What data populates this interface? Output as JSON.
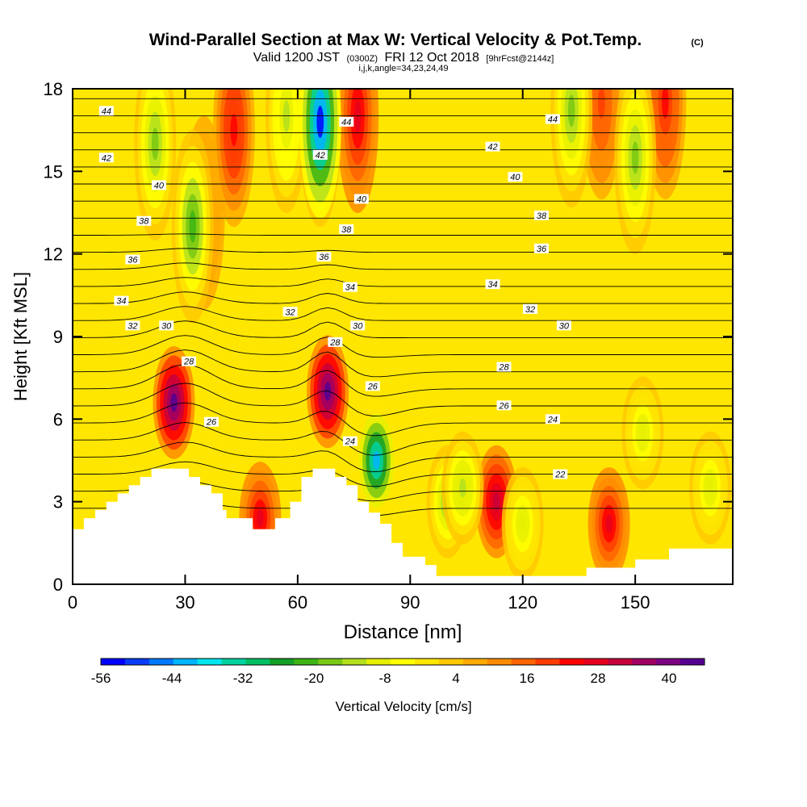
{
  "header": {
    "title": "Wind-Parallel Section at Max W: Vertical Velocity & Pot.Temp.",
    "copyright": "(C)",
    "valid_prefix": "Valid 1200 JST",
    "valid_utc": "(0300Z)",
    "valid_date": "FRI 12 Oct 2018",
    "forecast": "[9hrFcst@2144z]",
    "indices": "i,j,k,angle=34,23,24,49"
  },
  "chart_data": {
    "type": "heatmap",
    "xlabel": "Distance [nm]",
    "ylabel": "Height [Kft MSL]",
    "xlim": [
      0,
      176
    ],
    "ylim": [
      0,
      18
    ],
    "x_ticks": [
      0,
      30,
      60,
      90,
      120,
      150
    ],
    "y_ticks": [
      0,
      3,
      6,
      9,
      12,
      15,
      18
    ],
    "colorbar": {
      "label": "Vertical Velocity [cm/s]",
      "range": [
        -56,
        46
      ],
      "tick_labels": [
        -56,
        -44,
        -32,
        -20,
        -8,
        4,
        16,
        28,
        40
      ],
      "colors": [
        "#0000ff",
        "#0a3cf5",
        "#0078ff",
        "#00b4ff",
        "#00e6f0",
        "#00d2a0",
        "#00be64",
        "#14a028",
        "#3cb414",
        "#78c814",
        "#b4e01e",
        "#e6f000",
        "#ffff00",
        "#ffe600",
        "#ffc800",
        "#ffaa00",
        "#ff8c00",
        "#ff6400",
        "#ff3c00",
        "#ff0000",
        "#e6001e",
        "#c8003c",
        "#a00064",
        "#7a0082",
        "#550090"
      ]
    },
    "vertical_velocity_features": [
      {
        "x": 27,
        "height": 6.6,
        "w": 42,
        "kind": "updraft"
      },
      {
        "x": 35,
        "height": 13.5,
        "w": 8,
        "kind": "updraft"
      },
      {
        "x": 43,
        "height": 16.5,
        "w": 24,
        "kind": "updraft"
      },
      {
        "x": 50,
        "height": 2.4,
        "w": 28,
        "kind": "updraft"
      },
      {
        "x": 68,
        "height": 7.0,
        "w": 44,
        "kind": "updraft"
      },
      {
        "x": 76,
        "height": 17.0,
        "w": 26,
        "kind": "updraft"
      },
      {
        "x": 81,
        "height": 4.5,
        "w": -40,
        "kind": "downdraft"
      },
      {
        "x": 113,
        "height": 3.0,
        "w": 30,
        "kind": "updraft"
      },
      {
        "x": 143,
        "height": 2.2,
        "w": 28,
        "kind": "updraft"
      },
      {
        "x": 141,
        "height": 17.5,
        "w": 18,
        "kind": "updraft"
      },
      {
        "x": 158,
        "height": 17.5,
        "w": 22,
        "kind": "updraft"
      },
      {
        "x": 32,
        "height": 13.0,
        "w": -20,
        "kind": "downdraft"
      },
      {
        "x": 22,
        "height": 16.0,
        "w": -18,
        "kind": "downdraft"
      },
      {
        "x": 66,
        "height": 16.5,
        "w": -20,
        "kind": "downdraft"
      },
      {
        "x": 57,
        "height": 17.0,
        "w": -12,
        "kind": "downdraft"
      },
      {
        "x": 66,
        "height": 16.8,
        "w": -52,
        "kind": "downdraft"
      },
      {
        "x": 100,
        "height": 3.0,
        "w": -18,
        "kind": "downdraft"
      },
      {
        "x": 104,
        "height": 3.5,
        "w": -14,
        "kind": "downdraft"
      },
      {
        "x": 120,
        "height": 2.2,
        "w": -10,
        "kind": "downdraft"
      },
      {
        "x": 133,
        "height": 17.2,
        "w": -18,
        "kind": "downdraft"
      },
      {
        "x": 150,
        "height": 15.5,
        "w": -16,
        "kind": "downdraft"
      },
      {
        "x": 170,
        "height": 3.5,
        "w": -10,
        "kind": "downdraft"
      },
      {
        "x": 152,
        "height": 5.5,
        "w": -10,
        "kind": "downdraft"
      }
    ],
    "pot_temp_labels": [
      {
        "text": "44",
        "x": 9,
        "y": 17.2
      },
      {
        "text": "42",
        "x": 9,
        "y": 15.5
      },
      {
        "text": "40",
        "x": 23,
        "y": 14.5
      },
      {
        "text": "38",
        "x": 19,
        "y": 13.2
      },
      {
        "text": "36",
        "x": 16,
        "y": 11.8
      },
      {
        "text": "34",
        "x": 13,
        "y": 10.3
      },
      {
        "text": "32",
        "x": 16,
        "y": 9.4
      },
      {
        "text": "30",
        "x": 25,
        "y": 9.4
      },
      {
        "text": "28",
        "x": 31,
        "y": 8.1
      },
      {
        "text": "26",
        "x": 37,
        "y": 5.9
      },
      {
        "text": "44",
        "x": 73,
        "y": 16.8
      },
      {
        "text": "42",
        "x": 66,
        "y": 15.6
      },
      {
        "text": "40",
        "x": 77,
        "y": 14.0
      },
      {
        "text": "38",
        "x": 73,
        "y": 12.9
      },
      {
        "text": "36",
        "x": 67,
        "y": 11.9
      },
      {
        "text": "34",
        "x": 74,
        "y": 10.8
      },
      {
        "text": "32",
        "x": 58,
        "y": 9.9
      },
      {
        "text": "30",
        "x": 76,
        "y": 9.4
      },
      {
        "text": "28",
        "x": 70,
        "y": 8.8
      },
      {
        "text": "26",
        "x": 80,
        "y": 7.2
      },
      {
        "text": "24",
        "x": 74,
        "y": 5.2
      },
      {
        "text": "44",
        "x": 128,
        "y": 16.9
      },
      {
        "text": "42",
        "x": 112,
        "y": 15.9
      },
      {
        "text": "40",
        "x": 118,
        "y": 14.8
      },
      {
        "text": "38",
        "x": 125,
        "y": 13.4
      },
      {
        "text": "36",
        "x": 125,
        "y": 12.2
      },
      {
        "text": "34",
        "x": 112,
        "y": 10.9
      },
      {
        "text": "32",
        "x": 122,
        "y": 10.0
      },
      {
        "text": "30",
        "x": 131,
        "y": 9.4
      },
      {
        "text": "28",
        "x": 115,
        "y": 7.9
      },
      {
        "text": "26",
        "x": 115,
        "y": 6.5
      },
      {
        "text": "24",
        "x": 128,
        "y": 6.0
      },
      {
        "text": "22",
        "x": 130,
        "y": 4.0
      }
    ],
    "terrain": [
      [
        0,
        2.0
      ],
      [
        3,
        2.0
      ],
      [
        3,
        2.4
      ],
      [
        6,
        2.4
      ],
      [
        6,
        2.7
      ],
      [
        9,
        2.7
      ],
      [
        9,
        3.0
      ],
      [
        12,
        3.0
      ],
      [
        12,
        3.3
      ],
      [
        15,
        3.3
      ],
      [
        15,
        3.6
      ],
      [
        18,
        3.6
      ],
      [
        18,
        3.9
      ],
      [
        21,
        3.9
      ],
      [
        21,
        4.2
      ],
      [
        31,
        4.2
      ],
      [
        31,
        3.9
      ],
      [
        34,
        3.9
      ],
      [
        34,
        3.6
      ],
      [
        37,
        3.6
      ],
      [
        37,
        3.3
      ],
      [
        40,
        3.3
      ],
      [
        40,
        2.7
      ],
      [
        41,
        2.7
      ],
      [
        41,
        2.4
      ],
      [
        48,
        2.4
      ],
      [
        48,
        2.0
      ],
      [
        54,
        2.0
      ],
      [
        54,
        2.4
      ],
      [
        58,
        2.4
      ],
      [
        58,
        3.0
      ],
      [
        61,
        3.0
      ],
      [
        61,
        3.9
      ],
      [
        64,
        3.9
      ],
      [
        64,
        4.2
      ],
      [
        70,
        4.2
      ],
      [
        70,
        3.9
      ],
      [
        73,
        3.9
      ],
      [
        73,
        3.6
      ],
      [
        76,
        3.6
      ],
      [
        76,
        3.0
      ],
      [
        79,
        3.0
      ],
      [
        79,
        2.6
      ],
      [
        82,
        2.6
      ],
      [
        82,
        2.2
      ],
      [
        85,
        2.2
      ],
      [
        85,
        1.5
      ],
      [
        88,
        1.5
      ],
      [
        88,
        1.0
      ],
      [
        94,
        1.0
      ],
      [
        94,
        0.7
      ],
      [
        97,
        0.7
      ],
      [
        97,
        0.3
      ],
      [
        137,
        0.3
      ],
      [
        137,
        0.6
      ],
      [
        150,
        0.6
      ],
      [
        150,
        0.9
      ],
      [
        159,
        0.9
      ],
      [
        159,
        1.3
      ],
      [
        176,
        1.3
      ],
      [
        176,
        0
      ],
      [
        0,
        0
      ]
    ]
  }
}
